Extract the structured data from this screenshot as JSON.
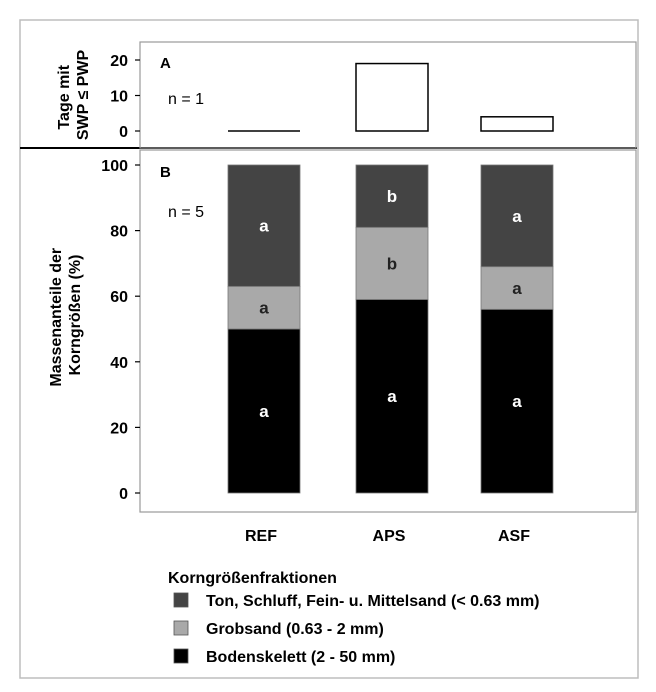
{
  "chart_data": [
    {
      "panel": "A",
      "type": "bar",
      "ylabel": "Tage mit SWP ≤ PWP",
      "ylabel_lines": [
        "Tage mit",
        "SWP ≤ PWP"
      ],
      "note": "n = 1",
      "categories": [
        "REF",
        "APS",
        "ASF"
      ],
      "values": [
        0,
        19,
        4
      ],
      "ylim": [
        0,
        20
      ],
      "yticks": [
        "0",
        "10",
        "20"
      ],
      "grid": false
    },
    {
      "panel": "B",
      "type": "bar",
      "stacked": true,
      "ylabel": "Massenanteile der Korngrößen (%)",
      "ylabel_lines": [
        "Massenanteile der",
        "Korngrößen (%)"
      ],
      "note": "n = 5",
      "categories": [
        "REF",
        "APS",
        "ASF"
      ],
      "ylim": [
        0,
        100
      ],
      "yticks": [
        "0",
        "20",
        "40",
        "60",
        "80",
        "100"
      ],
      "grid": false,
      "legend_title": "Korngrößenfraktionen",
      "legend_position": "bottom",
      "series": [
        {
          "name": "Bodenskelett (2 - 50 mm)",
          "color": "#000000",
          "values": [
            50,
            59,
            56
          ],
          "letters": [
            "a",
            "a",
            "a"
          ],
          "letter_color": "#ffffff"
        },
        {
          "name": "Grobsand (0.63 - 2 mm)",
          "color": "#a9a9a9",
          "values": [
            13,
            22,
            13
          ],
          "letters": [
            "a",
            "b",
            "a"
          ],
          "letter_color": "#222222"
        },
        {
          "name": "Ton, Schluff, Fein- u. Mittelsand (< 0.63 mm)",
          "color": "#444444",
          "values": [
            37,
            19,
            31
          ],
          "letters": [
            "a",
            "b",
            "a"
          ],
          "letter_color": "#ffffff"
        }
      ],
      "legend_order": [
        2,
        1,
        0
      ]
    }
  ]
}
